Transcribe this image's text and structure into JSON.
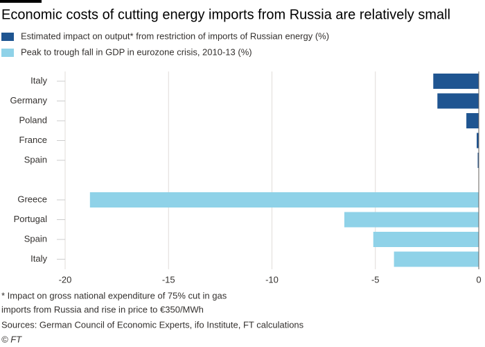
{
  "chart_data": {
    "type": "hbar",
    "title": "Economic costs of cutting energy imports from Russia are relatively small",
    "categories": [
      "Italy",
      "Germany",
      "Poland",
      "France",
      "Spain",
      null,
      "Greece",
      "Portugal",
      "Spain",
      "Italy"
    ],
    "series": [
      {
        "name": "Estimated impact on output* from restriction of imports of Russian energy (%)",
        "color": "#1f5591",
        "values": [
          -2.2,
          -2.0,
          -0.6,
          -0.1,
          -0.05,
          null,
          null,
          null,
          null,
          null
        ]
      },
      {
        "name": "Peak to trough fall in GDP in eurozone crisis, 2010-13 (%)",
        "color": "#8fd2e8",
        "values": [
          null,
          null,
          null,
          null,
          null,
          null,
          -18.8,
          -6.5,
          -5.1,
          -4.1
        ]
      }
    ],
    "xlim": [
      -20,
      0
    ],
    "xticks": [
      -20,
      -15,
      -10,
      -5,
      0
    ],
    "grid": true,
    "footnote": [
      "* Impact on gross national expenditure of 75% cut in gas",
      "imports from Russia and rise in price to €350/MWh"
    ],
    "source": "Sources: German Council of Economic Experts, ifo Institute, FT calculations",
    "credit": "© FT"
  }
}
